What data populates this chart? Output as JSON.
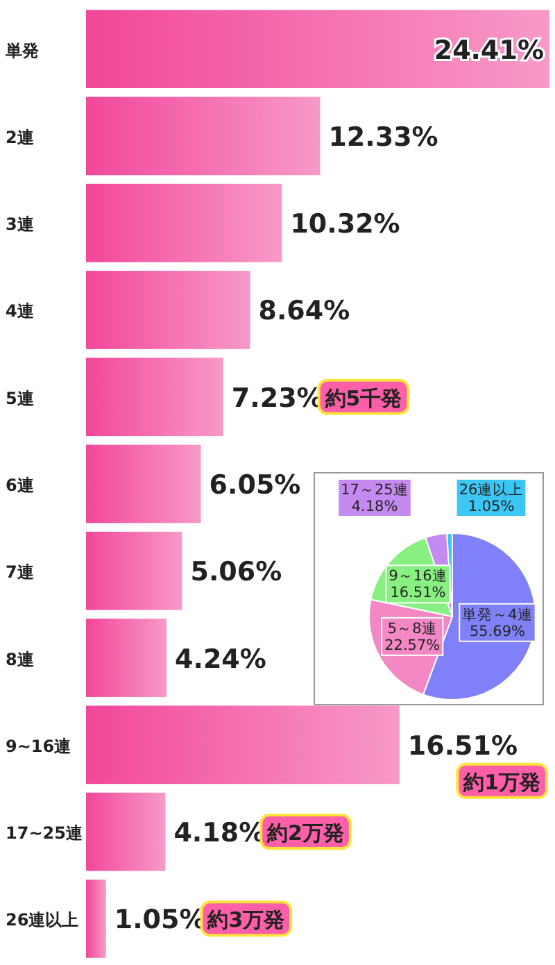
{
  "chart_data": [
    {
      "type": "bar",
      "orientation": "horizontal",
      "categories": [
        "単発",
        "2連",
        "3連",
        "4連",
        "5連",
        "6連",
        "7連",
        "8連",
        "9~16連",
        "17~25連",
        "26連以上"
      ],
      "values": [
        24.41,
        12.33,
        10.32,
        8.64,
        7.23,
        6.05,
        5.06,
        4.24,
        16.51,
        4.18,
        1.05
      ],
      "value_labels": [
        "24.41%",
        "12.33%",
        "10.32%",
        "8.64%",
        "7.23%",
        "6.05%",
        "5.06%",
        "4.24%",
        "16.51%",
        "4.18%",
        "1.05%"
      ],
      "color": "#f2479a",
      "annotations": [
        "約5千発",
        "約1万発",
        "約2万発",
        "約3万発"
      ]
    },
    {
      "type": "pie",
      "categories": [
        "単発～4連",
        "5～8連",
        "9～16連",
        "17～25連",
        "26連以上"
      ],
      "values": [
        55.69,
        22.57,
        16.51,
        4.18,
        1.05
      ],
      "value_labels": [
        "55.69%",
        "22.57%",
        "16.51%",
        "4.18%",
        "1.05%"
      ],
      "colors": [
        "#8080f8",
        "#f388c4",
        "#88f080",
        "#c58af2",
        "#3cc6f4"
      ]
    }
  ]
}
